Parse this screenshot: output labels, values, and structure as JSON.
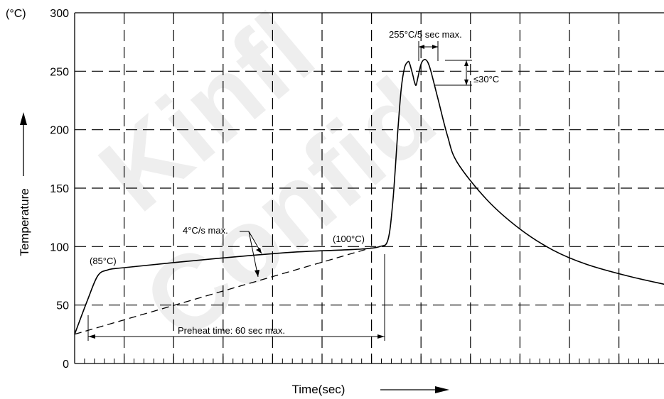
{
  "chart_data": {
    "type": "line",
    "xlabel": "Time(sec)",
    "ylabel": "Temperature",
    "yunit": "(°C)",
    "ylim": [
      0,
      300
    ],
    "yticks": [
      "0",
      "50",
      "100",
      "150",
      "200",
      "250",
      "300"
    ],
    "grid": true,
    "series": [
      {
        "style": "solid",
        "points": [
          [
            0,
            25
          ],
          [
            8,
            55
          ],
          [
            14,
            75
          ],
          [
            20,
            80
          ],
          [
            30,
            82
          ],
          [
            80,
            89
          ],
          [
            130,
            95
          ],
          [
            160,
            97
          ],
          [
            175,
            98
          ],
          [
            185,
            100
          ],
          [
            190,
            106
          ],
          [
            193,
            140
          ],
          [
            196,
            200
          ],
          [
            198,
            235
          ],
          [
            200,
            253
          ],
          [
            202,
            258
          ],
          [
            203,
            257
          ],
          [
            205,
            247
          ],
          [
            206,
            241
          ],
          [
            207,
            238
          ],
          [
            208,
            244
          ],
          [
            210,
            256
          ],
          [
            212,
            260
          ],
          [
            214,
            258
          ],
          [
            216,
            250
          ],
          [
            220,
            228
          ],
          [
            226,
            195
          ],
          [
            232,
            172
          ],
          [
            250,
            140
          ],
          [
            270,
            115
          ],
          [
            290,
            97
          ],
          [
            310,
            85
          ],
          [
            335,
            75
          ],
          [
            360,
            67
          ],
          [
            376,
            62
          ]
        ]
      },
      {
        "style": "dashed",
        "points": [
          [
            0,
            25
          ],
          [
            180,
            99
          ]
        ]
      }
    ]
  },
  "annotations": {
    "peak_time": "255°C/5 sec max.",
    "peak_delta": "≤30°C",
    "ramp_rate": "4°C/s max.",
    "point_100": "(100°C)",
    "point_85": "(85°C)",
    "preheat": "Preheat time: 60 sec max."
  },
  "watermark": [
    "Kinfl",
    "Confid"
  ]
}
